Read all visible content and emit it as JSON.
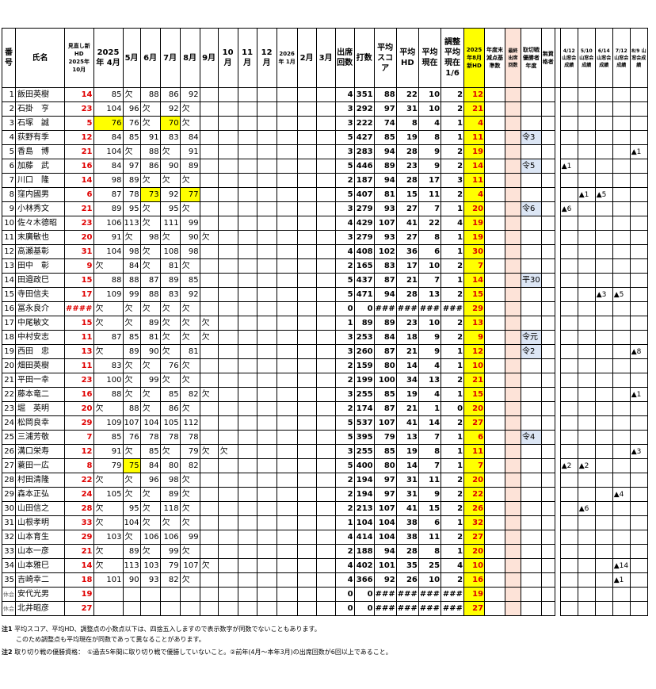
{
  "headers": {
    "no": "番号",
    "name": "氏名",
    "review": "見直し新HD 2025年10月",
    "months": [
      "2025年 4月",
      "5月",
      "6月",
      "7月",
      "8月",
      "9月",
      "10月",
      "11月",
      "12月",
      "2026年 1月",
      "2月",
      "3月"
    ],
    "attend": "出席回数",
    "strokes": "打数",
    "avg_score": "平均スコア",
    "avg_hd": "平均HD",
    "avg_now": "平均現在",
    "adj": "調整平均現在1/6",
    "new_hd": "2025年8月新HD",
    "year_end": "年度末減点基準数",
    "final_attend": "最終出席回数",
    "win_year": "取切戦優勝者年度",
    "no_qual": "無資格者",
    "results": [
      "4/12 山窓会成績",
      "5/10 山窓会成績",
      "6/14 山窓会成績",
      "7/12 山窓会成績",
      "8/9 山窓会成績"
    ]
  },
  "rows": [
    {
      "no": "1",
      "name": "飯田英樹",
      "review": "14",
      "m": [
        "85",
        "欠",
        "88",
        "86",
        "92",
        "",
        "",
        "",
        "",
        "",
        "",
        ""
      ],
      "hl": [],
      "att": "4",
      "str": "351",
      "sc": "88",
      "hd": "22",
      "now": "10",
      "adj": "2",
      "new": "12",
      "win": "",
      "res": [
        "",
        "",
        "",
        "",
        ""
      ]
    },
    {
      "no": "2",
      "name": "石掛　亨",
      "review": "23",
      "m": [
        "104",
        "96",
        "欠",
        "92",
        "欠",
        "",
        "",
        "",
        "",
        "",
        "",
        ""
      ],
      "hl": [],
      "att": "3",
      "str": "292",
      "sc": "97",
      "hd": "31",
      "now": "10",
      "adj": "2",
      "new": "21",
      "win": "",
      "res": [
        "",
        "",
        "",
        "",
        ""
      ]
    },
    {
      "no": "3",
      "name": "石塚　誠",
      "review": "5",
      "m": [
        "76",
        "76",
        "欠",
        "70",
        "欠",
        "",
        "",
        "",
        "",
        "",
        "",
        ""
      ],
      "hl": [
        0,
        3
      ],
      "att": "3",
      "str": "222",
      "sc": "74",
      "hd": "8",
      "now": "4",
      "adj": "1",
      "new": "4",
      "win": "",
      "res": [
        "",
        "",
        "",
        "",
        ""
      ]
    },
    {
      "no": "4",
      "name": "荻野有季",
      "review": "12",
      "m": [
        "84",
        "85",
        "91",
        "83",
        "84",
        "",
        "",
        "",
        "",
        "",
        "",
        ""
      ],
      "hl": [],
      "att": "5",
      "str": "427",
      "sc": "85",
      "hd": "19",
      "now": "8",
      "adj": "1",
      "new": "11",
      "win": "令3",
      "res": [
        "",
        "",
        "",
        "",
        ""
      ]
    },
    {
      "no": "5",
      "name": "香島　博",
      "review": "21",
      "m": [
        "104",
        "欠",
        "88",
        "欠",
        "91",
        "",
        "",
        "",
        "",
        "",
        "",
        ""
      ],
      "hl": [],
      "att": "3",
      "str": "283",
      "sc": "94",
      "hd": "28",
      "now": "9",
      "adj": "2",
      "new": "19",
      "win": "",
      "res": [
        "",
        "",
        "",
        "",
        "▲1"
      ]
    },
    {
      "no": "6",
      "name": "加藤　武",
      "review": "16",
      "m": [
        "84",
        "97",
        "86",
        "90",
        "89",
        "",
        "",
        "",
        "",
        "",
        "",
        ""
      ],
      "hl": [],
      "att": "5",
      "str": "446",
      "sc": "89",
      "hd": "23",
      "now": "9",
      "adj": "2",
      "new": "14",
      "win": "令5",
      "res": [
        "▲1",
        "",
        "",
        "",
        ""
      ]
    },
    {
      "no": "7",
      "name": "川口　隆",
      "review": "14",
      "m": [
        "98",
        "89",
        "欠",
        "欠",
        "欠",
        "",
        "",
        "",
        "",
        "",
        "",
        ""
      ],
      "hl": [],
      "att": "2",
      "str": "187",
      "sc": "94",
      "hd": "28",
      "now": "17",
      "adj": "3",
      "new": "11",
      "win": "",
      "res": [
        "",
        "",
        "",
        "",
        ""
      ]
    },
    {
      "no": "8",
      "name": "窪内國男",
      "review": "6",
      "m": [
        "87",
        "78",
        "73",
        "92",
        "77",
        "",
        "",
        "",
        "",
        "",
        "",
        ""
      ],
      "hl": [
        2,
        4
      ],
      "att": "5",
      "str": "407",
      "sc": "81",
      "hd": "15",
      "now": "11",
      "adj": "2",
      "new": "4",
      "win": "",
      "res": [
        "",
        "▲1",
        "▲5",
        "",
        ""
      ]
    },
    {
      "no": "9",
      "name": "小林秀文",
      "review": "21",
      "m": [
        "89",
        "95",
        "欠",
        "95",
        "欠",
        "",
        "",
        "",
        "",
        "",
        "",
        ""
      ],
      "hl": [],
      "att": "3",
      "str": "279",
      "sc": "93",
      "hd": "27",
      "now": "7",
      "adj": "1",
      "new": "20",
      "win": "令6",
      "res": [
        "▲6",
        "",
        "",
        "",
        ""
      ]
    },
    {
      "no": "10",
      "name": "佐々木德昭",
      "review": "23",
      "m": [
        "106",
        "113",
        "欠",
        "111",
        "99",
        "",
        "",
        "",
        "",
        "",
        "",
        ""
      ],
      "hl": [],
      "att": "4",
      "str": "429",
      "sc": "107",
      "hd": "41",
      "now": "22",
      "adj": "4",
      "new": "19",
      "win": "",
      "res": [
        "",
        "",
        "",
        "",
        ""
      ]
    },
    {
      "no": "11",
      "name": "末廣敏也",
      "review": "20",
      "m": [
        "91",
        "欠",
        "98",
        "欠",
        "90",
        "欠",
        "",
        "",
        "",
        "",
        "",
        ""
      ],
      "hl": [],
      "att": "3",
      "str": "279",
      "sc": "93",
      "hd": "27",
      "now": "8",
      "adj": "1",
      "new": "19",
      "win": "",
      "res": [
        "",
        "",
        "",
        "",
        ""
      ]
    },
    {
      "no": "12",
      "name": "高瀬基彰",
      "review": "31",
      "m": [
        "104",
        "98",
        "欠",
        "108",
        "98",
        "",
        "",
        "",
        "",
        "",
        "",
        ""
      ],
      "hl": [],
      "att": "4",
      "str": "408",
      "sc": "102",
      "hd": "36",
      "now": "6",
      "adj": "1",
      "new": "30",
      "win": "",
      "res": [
        "",
        "",
        "",
        "",
        ""
      ]
    },
    {
      "no": "13",
      "name": "田中　彰",
      "review": "9",
      "m": [
        "欠",
        "84",
        "欠",
        "81",
        "欠",
        "",
        "",
        "",
        "",
        "",
        "",
        ""
      ],
      "hl": [],
      "att": "2",
      "str": "165",
      "sc": "83",
      "hd": "17",
      "now": "10",
      "adj": "2",
      "new": "7",
      "win": "",
      "res": [
        "",
        "",
        "",
        "",
        ""
      ]
    },
    {
      "no": "14",
      "name": "田邉政巳",
      "review": "15",
      "m": [
        "88",
        "88",
        "87",
        "89",
        "85",
        "",
        "",
        "",
        "",
        "",
        "",
        ""
      ],
      "hl": [],
      "att": "5",
      "str": "437",
      "sc": "87",
      "hd": "21",
      "now": "7",
      "adj": "1",
      "new": "14",
      "win": "平30",
      "res": [
        "",
        "",
        "",
        "",
        ""
      ]
    },
    {
      "no": "15",
      "name": "寺田信夫",
      "review": "17",
      "m": [
        "109",
        "99",
        "88",
        "83",
        "92",
        "",
        "",
        "",
        "",
        "",
        "",
        ""
      ],
      "hl": [],
      "att": "5",
      "str": "471",
      "sc": "94",
      "hd": "28",
      "now": "13",
      "adj": "2",
      "new": "15",
      "win": "",
      "res": [
        "",
        "",
        "▲3",
        "▲5",
        ""
      ]
    },
    {
      "no": "16",
      "name": "冨永良介",
      "review": "####",
      "m": [
        "欠",
        "欠",
        "欠",
        "欠",
        "欠",
        "",
        "",
        "",
        "",
        "",
        "",
        ""
      ],
      "hl": [],
      "att": "0",
      "str": "0",
      "sc": "###",
      "hd": "###",
      "now": "###",
      "adj": "###",
      "new": "29",
      "win": "",
      "res": [
        "",
        "",
        "",
        "",
        ""
      ]
    },
    {
      "no": "17",
      "name": "中尾敏文",
      "review": "15",
      "m": [
        "欠",
        "欠",
        "89",
        "欠",
        "欠",
        "欠",
        "",
        "",
        "",
        "",
        "",
        ""
      ],
      "hl": [],
      "att": "1",
      "str": "89",
      "sc": "89",
      "hd": "23",
      "now": "10",
      "adj": "2",
      "new": "13",
      "win": "",
      "res": [
        "",
        "",
        "",
        "",
        ""
      ]
    },
    {
      "no": "18",
      "name": "中村安志",
      "review": "11",
      "m": [
        "87",
        "85",
        "81",
        "欠",
        "欠",
        "欠",
        "",
        "",
        "",
        "",
        "",
        ""
      ],
      "hl": [],
      "att": "3",
      "str": "253",
      "sc": "84",
      "hd": "18",
      "now": "9",
      "adj": "2",
      "new": "9",
      "win": "令元",
      "res": [
        "",
        "",
        "",
        "",
        ""
      ]
    },
    {
      "no": "19",
      "name": "西田　忠",
      "review": "13",
      "m": [
        "欠",
        "89",
        "90",
        "欠",
        "81",
        "",
        "",
        "",
        "",
        "",
        "",
        ""
      ],
      "hl": [],
      "att": "3",
      "str": "260",
      "sc": "87",
      "hd": "21",
      "now": "9",
      "adj": "1",
      "new": "12",
      "win": "令2",
      "res": [
        "",
        "",
        "",
        "",
        "▲8"
      ]
    },
    {
      "no": "20",
      "name": "畑田英樹",
      "review": "11",
      "m": [
        "83",
        "欠",
        "欠",
        "76",
        "欠",
        "",
        "",
        "",
        "",
        "",
        "",
        ""
      ],
      "hl": [],
      "att": "2",
      "str": "159",
      "sc": "80",
      "hd": "14",
      "now": "4",
      "adj": "1",
      "new": "10",
      "win": "",
      "res": [
        "",
        "",
        "",
        "",
        ""
      ]
    },
    {
      "no": "21",
      "name": "平田一幸",
      "review": "23",
      "m": [
        "100",
        "欠",
        "99",
        "欠",
        "欠",
        "",
        "",
        "",
        "",
        "",
        "",
        ""
      ],
      "hl": [],
      "att": "2",
      "str": "199",
      "sc": "100",
      "hd": "34",
      "now": "13",
      "adj": "2",
      "new": "21",
      "win": "",
      "res": [
        "",
        "",
        "",
        "",
        ""
      ]
    },
    {
      "no": "22",
      "name": "藤本竜二",
      "review": "16",
      "m": [
        "88",
        "欠",
        "欠",
        "85",
        "82",
        "欠",
        "",
        "",
        "",
        "",
        "",
        ""
      ],
      "hl": [],
      "att": "3",
      "str": "255",
      "sc": "85",
      "hd": "19",
      "now": "4",
      "adj": "1",
      "new": "15",
      "win": "",
      "res": [
        "",
        "",
        "",
        "",
        "▲1"
      ]
    },
    {
      "no": "23",
      "name": "堀　英明",
      "review": "20",
      "m": [
        "欠",
        "88",
        "欠",
        "86",
        "欠",
        "",
        "",
        "",
        "",
        "",
        "",
        ""
      ],
      "hl": [],
      "att": "2",
      "str": "174",
      "sc": "87",
      "hd": "21",
      "now": "1",
      "adj": "0",
      "new": "20",
      "win": "",
      "res": [
        "",
        "",
        "",
        "",
        ""
      ]
    },
    {
      "no": "24",
      "name": "松岡良幸",
      "review": "29",
      "m": [
        "109",
        "107",
        "104",
        "105",
        "112",
        "",
        "",
        "",
        "",
        "",
        "",
        ""
      ],
      "hl": [],
      "att": "5",
      "str": "537",
      "sc": "107",
      "hd": "41",
      "now": "14",
      "adj": "2",
      "new": "27",
      "win": "",
      "res": [
        "",
        "",
        "",
        "",
        ""
      ]
    },
    {
      "no": "25",
      "name": "三浦芳敬",
      "review": "7",
      "m": [
        "85",
        "76",
        "78",
        "78",
        "78",
        "",
        "",
        "",
        "",
        "",
        "",
        ""
      ],
      "hl": [],
      "att": "5",
      "str": "395",
      "sc": "79",
      "hd": "13",
      "now": "7",
      "adj": "1",
      "new": "6",
      "win": "令4",
      "res": [
        "",
        "",
        "",
        "",
        ""
      ]
    },
    {
      "no": "26",
      "name": "溝口栄寿",
      "review": "12",
      "m": [
        "91",
        "欠",
        "85",
        "欠",
        "79",
        "欠",
        "欠",
        "",
        "",
        "",
        "",
        ""
      ],
      "hl": [],
      "att": "3",
      "str": "255",
      "sc": "85",
      "hd": "19",
      "now": "8",
      "adj": "1",
      "new": "11",
      "win": "",
      "res": [
        "",
        "",
        "",
        "",
        "▲3"
      ]
    },
    {
      "no": "27",
      "name": "蓑田一広",
      "review": "8",
      "m": [
        "79",
        "75",
        "84",
        "80",
        "82",
        "",
        "",
        "",
        "",
        "",
        "",
        ""
      ],
      "hl": [
        1
      ],
      "att": "5",
      "str": "400",
      "sc": "80",
      "hd": "14",
      "now": "7",
      "adj": "1",
      "new": "7",
      "win": "",
      "res": [
        "▲2",
        "▲2",
        "",
        "",
        ""
      ]
    },
    {
      "no": "28",
      "name": "村田清隆",
      "review": "22",
      "m": [
        "欠",
        "欠",
        "96",
        "98",
        "欠",
        "",
        "",
        "",
        "",
        "",
        "",
        ""
      ],
      "hl": [],
      "att": "2",
      "str": "194",
      "sc": "97",
      "hd": "31",
      "now": "11",
      "adj": "2",
      "new": "20",
      "win": "",
      "res": [
        "",
        "",
        "",
        "",
        ""
      ]
    },
    {
      "no": "29",
      "name": "森本正弘",
      "review": "24",
      "m": [
        "105",
        "欠",
        "欠",
        "89",
        "欠",
        "",
        "",
        "",
        "",
        "",
        "",
        ""
      ],
      "hl": [],
      "att": "2",
      "str": "194",
      "sc": "97",
      "hd": "31",
      "now": "9",
      "adj": "2",
      "new": "22",
      "win": "",
      "res": [
        "",
        "",
        "",
        "▲4",
        ""
      ]
    },
    {
      "no": "30",
      "name": "山田信之",
      "review": "28",
      "m": [
        "欠",
        "95",
        "欠",
        "118",
        "欠",
        "",
        "",
        "",
        "",
        "",
        "",
        ""
      ],
      "hl": [],
      "att": "2",
      "str": "213",
      "sc": "107",
      "hd": "41",
      "now": "15",
      "adj": "2",
      "new": "26",
      "win": "",
      "res": [
        "",
        "▲6",
        "",
        "",
        ""
      ]
    },
    {
      "no": "31",
      "name": "山根孝明",
      "review": "33",
      "m": [
        "欠",
        "104",
        "欠",
        "欠",
        "欠",
        "",
        "",
        "",
        "",
        "",
        "",
        ""
      ],
      "hl": [],
      "att": "1",
      "str": "104",
      "sc": "104",
      "hd": "38",
      "now": "6",
      "adj": "1",
      "new": "32",
      "win": "",
      "res": [
        "",
        "",
        "",
        "",
        ""
      ]
    },
    {
      "no": "32",
      "name": "山本育生",
      "review": "29",
      "m": [
        "103",
        "欠",
        "106",
        "106",
        "99",
        "",
        "",
        "",
        "",
        "",
        "",
        ""
      ],
      "hl": [],
      "att": "4",
      "str": "414",
      "sc": "104",
      "hd": "38",
      "now": "11",
      "adj": "2",
      "new": "27",
      "win": "",
      "res": [
        "",
        "",
        "",
        "",
        ""
      ]
    },
    {
      "no": "33",
      "name": "山本一彦",
      "review": "21",
      "m": [
        "欠",
        "89",
        "欠",
        "99",
        "欠",
        "",
        "",
        "",
        "",
        "",
        "",
        ""
      ],
      "hl": [],
      "att": "2",
      "str": "188",
      "sc": "94",
      "hd": "28",
      "now": "8",
      "adj": "1",
      "new": "20",
      "win": "",
      "res": [
        "",
        "",
        "",
        "",
        ""
      ]
    },
    {
      "no": "34",
      "name": "山本雅巳",
      "review": "14",
      "m": [
        "欠",
        "113",
        "103",
        "79",
        "107",
        "欠",
        "",
        "",
        "",
        "",
        "",
        ""
      ],
      "hl": [],
      "att": "4",
      "str": "402",
      "sc": "101",
      "hd": "35",
      "now": "25",
      "adj": "4",
      "new": "10",
      "win": "",
      "res": [
        "",
        "",
        "",
        "▲14",
        ""
      ]
    },
    {
      "no": "35",
      "name": "吉崎幸二",
      "review": "18",
      "m": [
        "101",
        "90",
        "93",
        "82",
        "欠",
        "",
        "",
        "",
        "",
        "",
        "",
        ""
      ],
      "hl": [],
      "att": "4",
      "str": "366",
      "sc": "92",
      "hd": "26",
      "now": "10",
      "adj": "2",
      "new": "16",
      "win": "",
      "res": [
        "",
        "",
        "",
        "▲1",
        ""
      ]
    },
    {
      "no": "休会",
      "name": "安代光男",
      "review": "19",
      "m": [
        "",
        "",
        "",
        "",
        "",
        "",
        "",
        "",
        "",
        "",
        "",
        ""
      ],
      "hl": [],
      "att": "0",
      "str": "0",
      "sc": "###",
      "hd": "###",
      "now": "###",
      "adj": "###",
      "new": "19",
      "win": "",
      "res": [
        "",
        "",
        "",
        "",
        ""
      ]
    },
    {
      "no": "休会",
      "name": "北井昭彦",
      "review": "27",
      "m": [
        "",
        "",
        "",
        "",
        "",
        "",
        "",
        "",
        "",
        "",
        "",
        ""
      ],
      "hl": [],
      "att": "0",
      "str": "0",
      "sc": "###",
      "hd": "###",
      "now": "###",
      "adj": "###",
      "new": "27",
      "win": "",
      "res": [
        "",
        "",
        "",
        "",
        ""
      ]
    }
  ],
  "notes": {
    "n1_label": "注1",
    "n1_line1": "平均スコア、平均HD、調整点の小数点以下は、四捨五入しますので表示数字が同数でないこともあります。",
    "n1_line2": "このため調整点も平均現在が同数であって異なることがあります。",
    "n2_label": "注2",
    "n2_text": "取り切り戦の優勝資格：　①過去5年間に取り切り戦で優勝していないこと。②前年(4月～本年3月)の出席回数が6回以上であること。"
  },
  "colors": {
    "highlight": "#ffff00",
    "red_text": "#e00000",
    "pink": "#fde3d8",
    "blue": "#dce6f5"
  }
}
